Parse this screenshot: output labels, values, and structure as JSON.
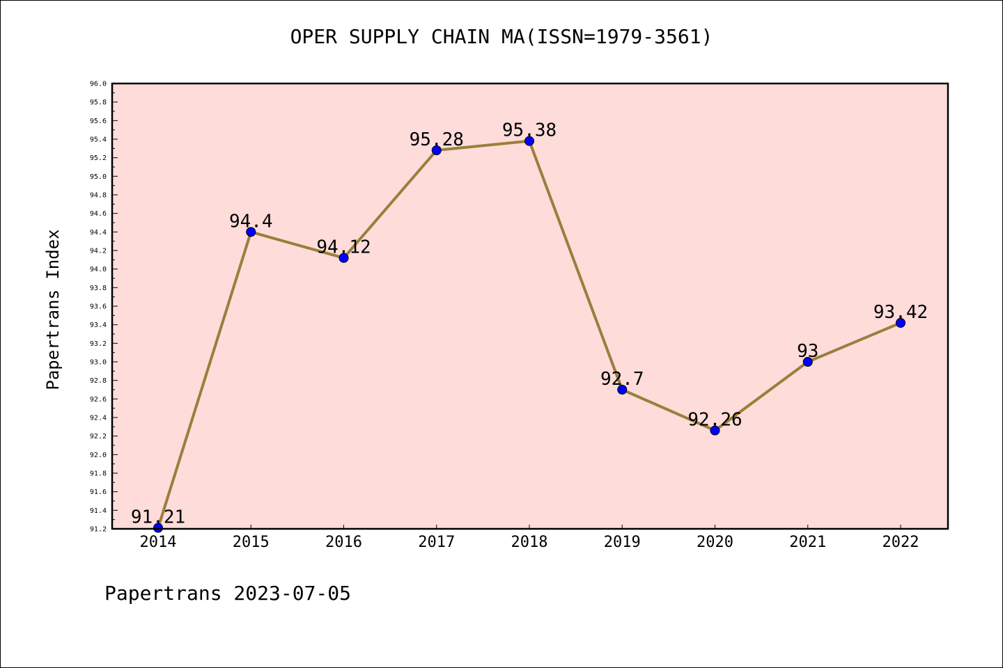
{
  "footer_text": "Papertrans 2023-07-05",
  "colors": {
    "plot_background": "#fddcda",
    "line": "#9a7f3c",
    "marker": "#0000ff"
  },
  "chart_data": {
    "type": "line",
    "title": "OPER SUPPLY CHAIN MA(ISSN=1979-3561)",
    "xlabel": "",
    "ylabel": "Papertrans Index",
    "categories": [
      "2014",
      "2015",
      "2016",
      "2017",
      "2018",
      "2019",
      "2020",
      "2021",
      "2022"
    ],
    "series": [
      {
        "values": [
          91.21,
          94.4,
          94.12,
          95.28,
          95.38,
          92.7,
          92.26,
          93,
          93.42
        ],
        "data_labels": [
          "91.21",
          "94.4",
          "94.12",
          "95.28",
          "95.38",
          "92.7",
          "92.26",
          "93",
          "93.42"
        ]
      }
    ],
    "ylim": [
      91.2,
      96.0
    ],
    "yticks": [
      "91.2",
      "91.4",
      "91.6",
      "91.8",
      "92.0",
      "92.2",
      "92.4",
      "92.6",
      "92.8",
      "93.0",
      "93.2",
      "93.4",
      "93.6",
      "93.8",
      "94.0",
      "94.2",
      "94.4",
      "94.6",
      "94.8",
      "95.0",
      "95.2",
      "95.4",
      "95.6",
      "95.8",
      "96.0"
    ],
    "grid": false,
    "legend": "none"
  }
}
